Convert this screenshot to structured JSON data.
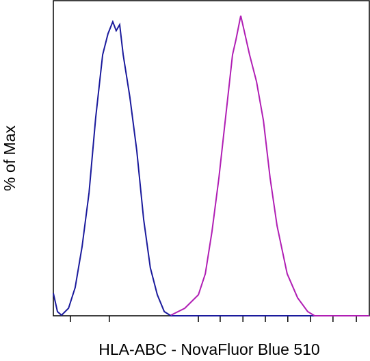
{
  "chart_data": {
    "type": "line",
    "x_label": "HLA-ABC - NovaFluor Blue 510",
    "y_label": "% of Max",
    "xlim": [
      0,
      1000
    ],
    "ylim": [
      0,
      105
    ],
    "xticks": [
      54,
      177,
      459,
      528,
      600,
      671,
      742,
      814,
      885,
      959
    ],
    "series": [
      {
        "color": "#1a1a9c",
        "x": [
          0,
          13,
          26,
          48,
          69,
          91,
          113,
          134,
          156,
          173,
          188,
          199,
          210,
          221,
          242,
          264,
          286,
          307,
          329,
          351,
          372,
          1000
        ],
        "values": [
          7.5,
          1.4,
          0.2,
          2.5,
          9.4,
          23,
          41,
          66,
          87,
          94,
          98,
          95,
          97,
          87,
          73,
          55,
          32,
          16,
          7,
          1.4,
          0,
          0
        ]
      },
      {
        "color": "#b01eb4",
        "x": [
          372,
          416,
          459,
          481,
          502,
          524,
          545,
          567,
          578,
          593,
          606,
          621,
          643,
          665,
          686,
          708,
          740,
          773,
          805,
          827,
          1000
        ],
        "values": [
          0.2,
          2.5,
          7,
          14,
          28,
          46,
          66,
          87,
          92,
          100,
          94,
          87,
          78,
          65,
          46,
          30,
          14,
          6,
          1.4,
          0,
          0
        ]
      }
    ]
  }
}
